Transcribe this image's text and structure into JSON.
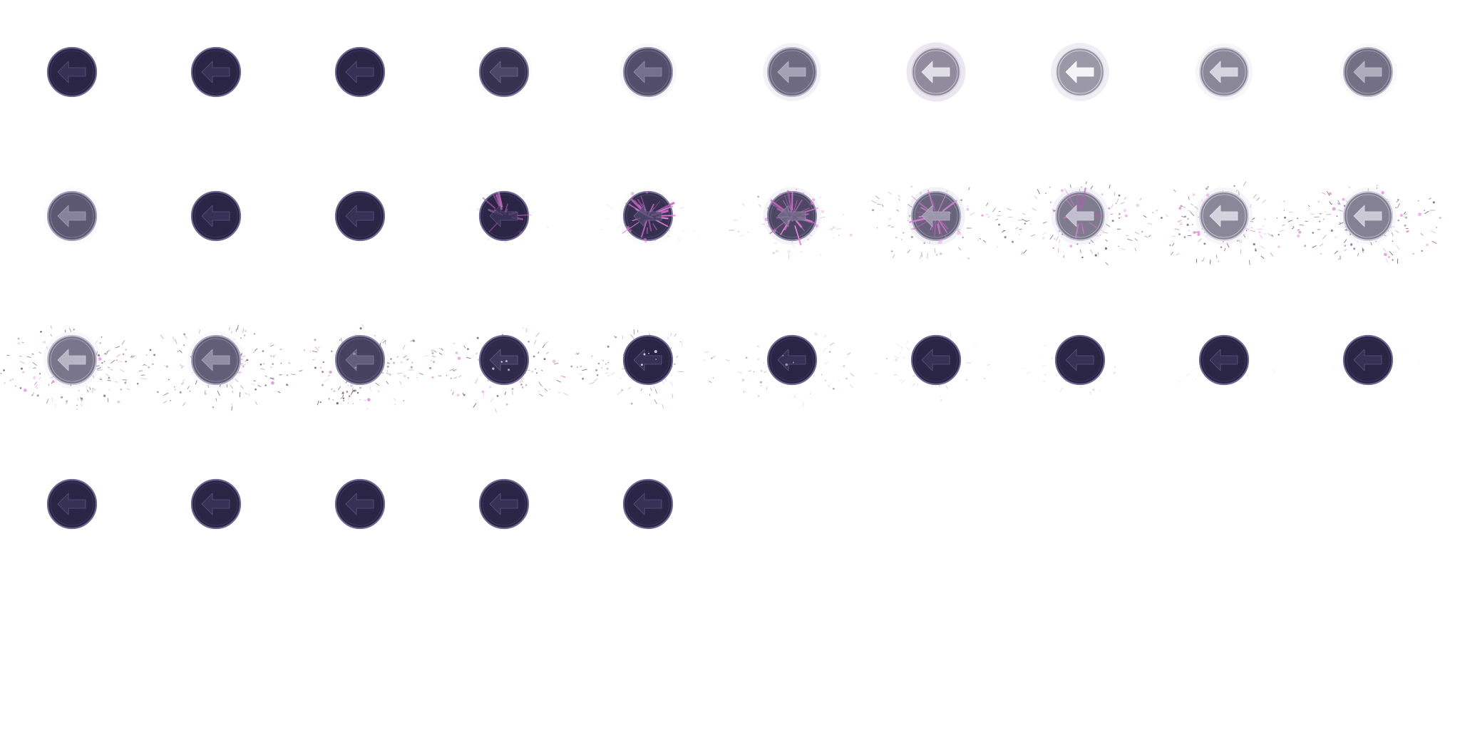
{
  "sprite_sheet": {
    "icon": "back-arrow-icon",
    "columns": 10,
    "colors": {
      "dark_fill": "#2a2445",
      "dark_ring": "#6b6690",
      "dark_arrow": "#3c365c",
      "light_fill": "#9b98a8",
      "light_ring": "#e8e6ee",
      "light_arrow": "#f4f3f8",
      "pink": "#e882e0",
      "burst_pink": "#b65fb5",
      "debris": "#6a4a62"
    },
    "frames": [
      {
        "brightness": 0.0,
        "glow": 0.0,
        "burst": 0.0,
        "particles": 0.0,
        "dots": 0.0
      },
      {
        "brightness": 0.0,
        "glow": 0.0,
        "burst": 0.0,
        "particles": 0.0,
        "dots": 0.0
      },
      {
        "brightness": 0.0,
        "glow": 0.0,
        "burst": 0.0,
        "particles": 0.0,
        "dots": 0.0
      },
      {
        "brightness": 0.12,
        "glow": 0.1,
        "burst": 0.0,
        "particles": 0.0,
        "dots": 0.0
      },
      {
        "brightness": 0.35,
        "glow": 0.3,
        "burst": 0.0,
        "particles": 0.0,
        "dots": 0.0
      },
      {
        "brightness": 0.6,
        "glow": 0.6,
        "burst": 0.0,
        "particles": 0.0,
        "dots": 0.0
      },
      {
        "brightness": 0.9,
        "glow": 1.0,
        "burst": 0.0,
        "particles": 0.0,
        "dots": 0.0
      },
      {
        "brightness": 1.0,
        "glow": 0.7,
        "burst": 0.0,
        "particles": 0.0,
        "dots": 0.0
      },
      {
        "brightness": 0.85,
        "glow": 0.4,
        "burst": 0.0,
        "particles": 0.0,
        "dots": 0.0
      },
      {
        "brightness": 0.65,
        "glow": 0.25,
        "burst": 0.0,
        "particles": 0.0,
        "dots": 0.0
      },
      {
        "brightness": 0.45,
        "glow": 0.2,
        "burst": 0.0,
        "particles": 0.0,
        "dots": 0.0
      },
      {
        "brightness": 0.0,
        "glow": 0.0,
        "burst": 0.0,
        "particles": 0.0,
        "dots": 0.0
      },
      {
        "brightness": 0.0,
        "glow": 0.0,
        "burst": 0.0,
        "particles": 0.0,
        "dots": 0.0
      },
      {
        "brightness": 0.0,
        "glow": 0.0,
        "burst": 0.35,
        "particles": 0.05,
        "dots": 0.0
      },
      {
        "brightness": 0.1,
        "glow": 0.2,
        "burst": 0.9,
        "particles": 0.15,
        "dots": 0.0
      },
      {
        "brightness": 0.3,
        "glow": 0.5,
        "burst": 1.0,
        "particles": 0.35,
        "dots": 0.0
      },
      {
        "brightness": 0.55,
        "glow": 0.6,
        "burst": 0.6,
        "particles": 0.6,
        "dots": 0.0
      },
      {
        "brightness": 0.75,
        "glow": 0.5,
        "burst": 0.3,
        "particles": 0.85,
        "dots": 0.0
      },
      {
        "brightness": 0.85,
        "glow": 0.4,
        "burst": 0.0,
        "particles": 1.0,
        "dots": 0.0
      },
      {
        "brightness": 0.8,
        "glow": 0.35,
        "burst": 0.0,
        "particles": 1.0,
        "dots": 0.0
      },
      {
        "brightness": 0.7,
        "glow": 0.3,
        "burst": 0.0,
        "particles": 1.0,
        "dots": 0.0
      },
      {
        "brightness": 0.5,
        "glow": 0.25,
        "burst": 0.0,
        "particles": 0.95,
        "dots": 0.0
      },
      {
        "brightness": 0.25,
        "glow": 0.15,
        "burst": 0.0,
        "particles": 0.85,
        "dots": 0.4
      },
      {
        "brightness": 0.05,
        "glow": 0.0,
        "burst": 0.0,
        "particles": 0.7,
        "dots": 0.8
      },
      {
        "brightness": 0.0,
        "glow": 0.0,
        "burst": 0.0,
        "particles": 0.55,
        "dots": 0.9
      },
      {
        "brightness": 0.0,
        "glow": 0.0,
        "burst": 0.0,
        "particles": 0.4,
        "dots": 0.6
      },
      {
        "brightness": 0.0,
        "glow": 0.0,
        "burst": 0.0,
        "particles": 0.28,
        "dots": 0.0
      },
      {
        "brightness": 0.0,
        "glow": 0.0,
        "burst": 0.0,
        "particles": 0.18,
        "dots": 0.0
      },
      {
        "brightness": 0.0,
        "glow": 0.0,
        "burst": 0.0,
        "particles": 0.1,
        "dots": 0.0
      },
      {
        "brightness": 0.0,
        "glow": 0.0,
        "burst": 0.0,
        "particles": 0.05,
        "dots": 0.0
      },
      {
        "brightness": 0.0,
        "glow": 0.0,
        "burst": 0.0,
        "particles": 0.0,
        "dots": 0.0
      },
      {
        "brightness": 0.0,
        "glow": 0.0,
        "burst": 0.0,
        "particles": 0.0,
        "dots": 0.0
      },
      {
        "brightness": 0.0,
        "glow": 0.0,
        "burst": 0.0,
        "particles": 0.0,
        "dots": 0.0
      },
      {
        "brightness": 0.0,
        "glow": 0.0,
        "burst": 0.0,
        "particles": 0.0,
        "dots": 0.0
      },
      {
        "brightness": 0.0,
        "glow": 0.0,
        "burst": 0.0,
        "particles": 0.0,
        "dots": 0.0
      }
    ]
  }
}
